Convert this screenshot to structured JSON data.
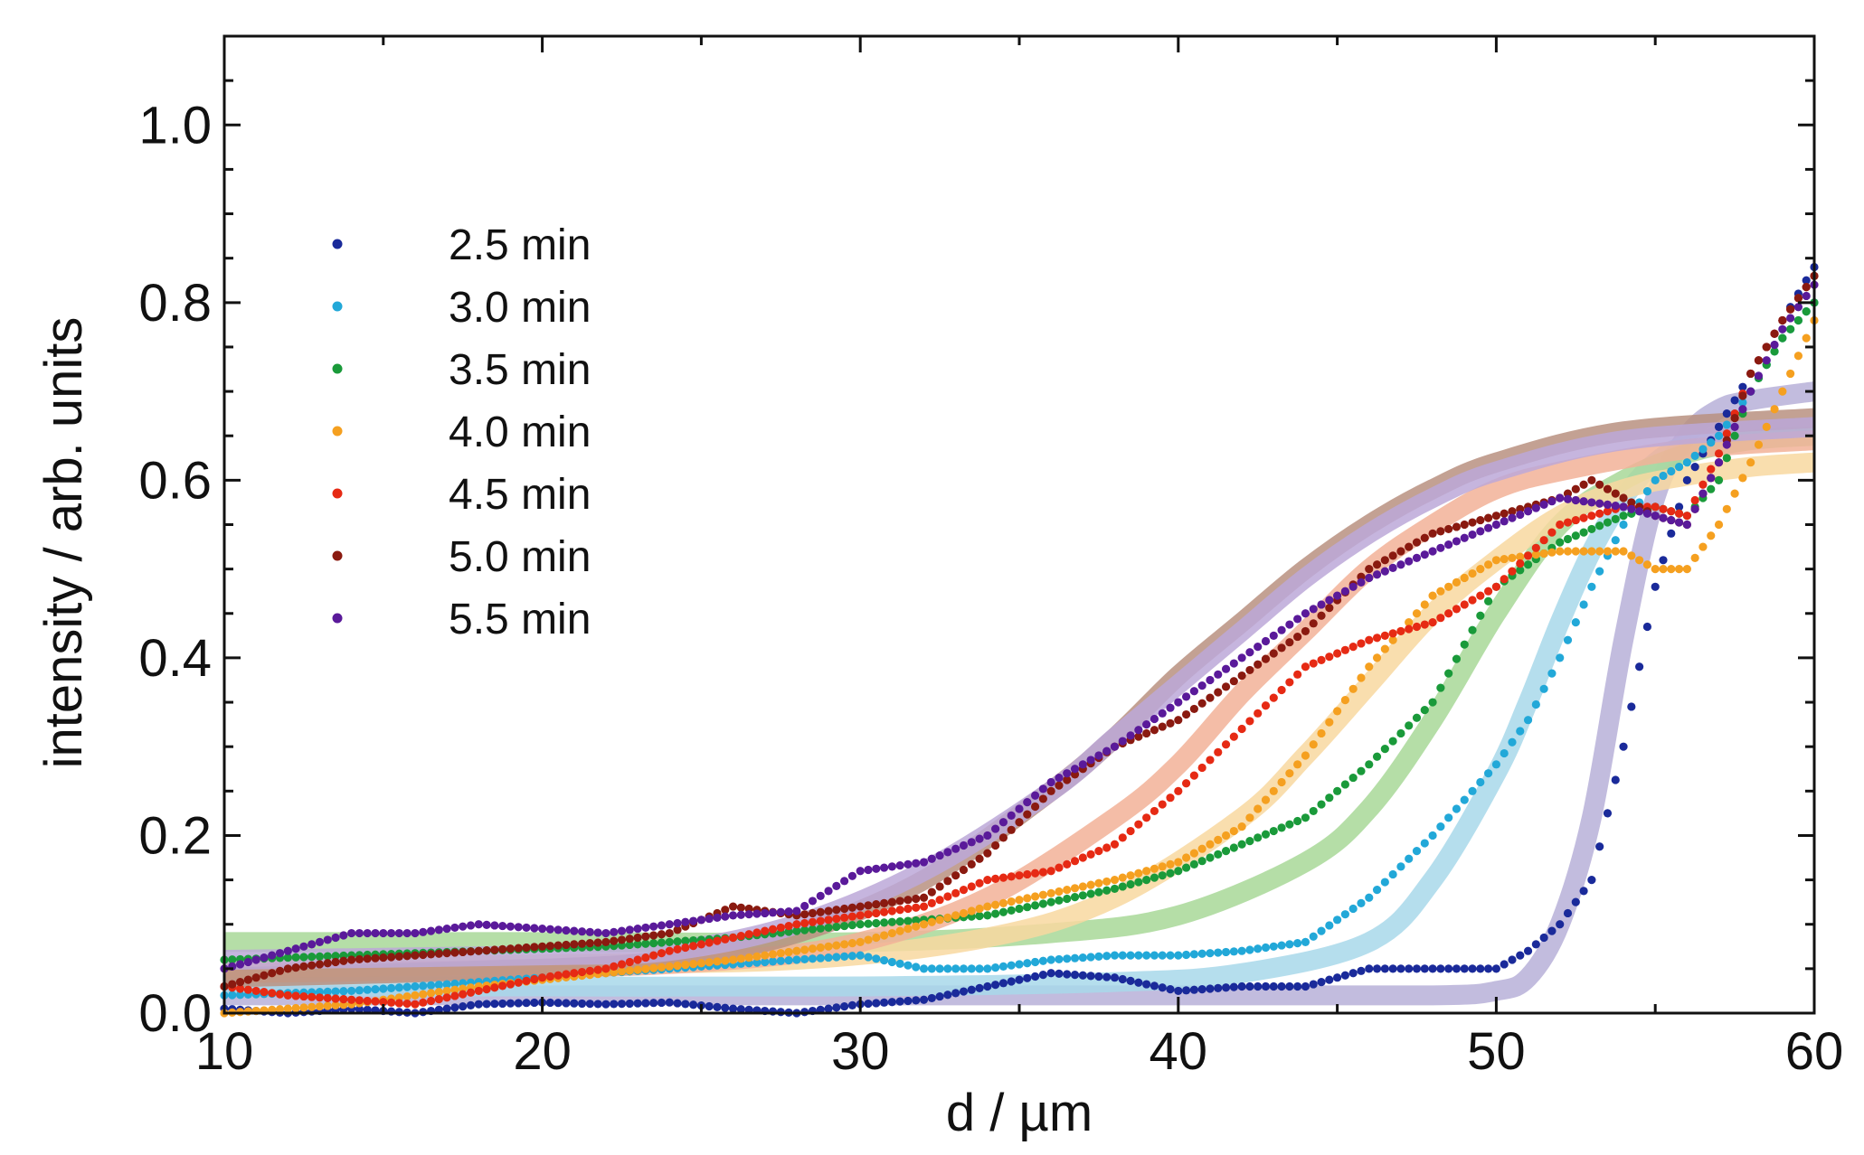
{
  "chart_data": {
    "type": "scatter",
    "title": "",
    "xlabel": "d / µm",
    "ylabel": "intensity / arb. units",
    "xlim": [
      10,
      60
    ],
    "ylim": [
      0,
      1.1
    ],
    "xticks": [
      10,
      20,
      30,
      40,
      50,
      60
    ],
    "xtick_labels": [
      "10",
      "20",
      "30",
      "40",
      "50",
      "60"
    ],
    "yticks": [
      0.0,
      0.2,
      0.4,
      0.6,
      0.8,
      1.0
    ],
    "ytick_labels": [
      "0.0",
      "0.2",
      "0.4",
      "0.6",
      "0.8",
      "1.0"
    ],
    "grid": false,
    "legend_position": "upper-left",
    "series": [
      {
        "name": "2.5 min",
        "color": "#1a2a9a",
        "fit_color": "#b7b0d8",
        "points": [
          [
            10,
            0.005
          ],
          [
            12,
            0.0
          ],
          [
            14,
            0.005
          ],
          [
            16,
            0.0
          ],
          [
            18,
            0.01
          ],
          [
            20,
            0.012
          ],
          [
            22,
            0.01
          ],
          [
            24,
            0.012
          ],
          [
            26,
            0.005
          ],
          [
            28,
            0.0
          ],
          [
            30,
            0.01
          ],
          [
            32,
            0.015
          ],
          [
            34,
            0.03
          ],
          [
            36,
            0.045
          ],
          [
            38,
            0.04
          ],
          [
            40,
            0.025
          ],
          [
            42,
            0.03
          ],
          [
            44,
            0.03
          ],
          [
            46,
            0.05
          ],
          [
            48,
            0.05
          ],
          [
            50,
            0.05
          ],
          [
            51,
            0.07
          ],
          [
            52,
            0.1
          ],
          [
            53,
            0.15
          ],
          [
            54,
            0.3
          ],
          [
            55,
            0.48
          ],
          [
            56,
            0.6
          ],
          [
            57,
            0.66
          ],
          [
            58,
            0.72
          ],
          [
            59,
            0.78
          ],
          [
            60,
            0.84
          ]
        ],
        "fit": [
          [
            10,
            0.02
          ],
          [
            20,
            0.02
          ],
          [
            30,
            0.02
          ],
          [
            40,
            0.02
          ],
          [
            48,
            0.02
          ],
          [
            50,
            0.025
          ],
          [
            51,
            0.04
          ],
          [
            52,
            0.1
          ],
          [
            53,
            0.22
          ],
          [
            54,
            0.42
          ],
          [
            55,
            0.58
          ],
          [
            56,
            0.65
          ],
          [
            57,
            0.68
          ],
          [
            58,
            0.69
          ],
          [
            60,
            0.7
          ]
        ]
      },
      {
        "name": "3.0 min",
        "color": "#22a8d8",
        "fit_color": "#a8d8ea",
        "points": [
          [
            10,
            0.02
          ],
          [
            14,
            0.025
          ],
          [
            18,
            0.035
          ],
          [
            22,
            0.045
          ],
          [
            26,
            0.055
          ],
          [
            30,
            0.065
          ],
          [
            32,
            0.05
          ],
          [
            34,
            0.05
          ],
          [
            36,
            0.06
          ],
          [
            38,
            0.065
          ],
          [
            40,
            0.065
          ],
          [
            42,
            0.07
          ],
          [
            44,
            0.08
          ],
          [
            46,
            0.13
          ],
          [
            48,
            0.2
          ],
          [
            50,
            0.28
          ],
          [
            51,
            0.33
          ],
          [
            52,
            0.4
          ],
          [
            53,
            0.48
          ],
          [
            54,
            0.55
          ],
          [
            55,
            0.6
          ],
          [
            56,
            0.62
          ],
          [
            57,
            0.65
          ],
          [
            58,
            0.7
          ],
          [
            59,
            0.76
          ],
          [
            60,
            0.8
          ]
        ],
        "fit": [
          [
            10,
            0.03
          ],
          [
            20,
            0.03
          ],
          [
            30,
            0.03
          ],
          [
            38,
            0.035
          ],
          [
            42,
            0.045
          ],
          [
            46,
            0.08
          ],
          [
            48,
            0.15
          ],
          [
            50,
            0.27
          ],
          [
            51,
            0.35
          ],
          [
            52,
            0.44
          ],
          [
            53,
            0.52
          ],
          [
            54,
            0.58
          ],
          [
            55,
            0.62
          ],
          [
            56,
            0.64
          ],
          [
            58,
            0.655
          ],
          [
            60,
            0.66
          ]
        ]
      },
      {
        "name": "3.5 min",
        "color": "#1a9a3a",
        "fit_color": "#a8d898",
        "points": [
          [
            10,
            0.06
          ],
          [
            14,
            0.065
          ],
          [
            18,
            0.07
          ],
          [
            22,
            0.075
          ],
          [
            26,
            0.085
          ],
          [
            30,
            0.1
          ],
          [
            34,
            0.11
          ],
          [
            38,
            0.14
          ],
          [
            40,
            0.16
          ],
          [
            42,
            0.19
          ],
          [
            44,
            0.22
          ],
          [
            46,
            0.28
          ],
          [
            48,
            0.35
          ],
          [
            50,
            0.48
          ],
          [
            52,
            0.53
          ],
          [
            54,
            0.56
          ],
          [
            55,
            0.57
          ],
          [
            56,
            0.56
          ],
          [
            57,
            0.6
          ],
          [
            58,
            0.7
          ],
          [
            59,
            0.76
          ],
          [
            60,
            0.8
          ]
        ],
        "fit": [
          [
            10,
            0.08
          ],
          [
            20,
            0.08
          ],
          [
            30,
            0.08
          ],
          [
            36,
            0.09
          ],
          [
            40,
            0.11
          ],
          [
            44,
            0.17
          ],
          [
            46,
            0.23
          ],
          [
            48,
            0.33
          ],
          [
            50,
            0.45
          ],
          [
            52,
            0.55
          ],
          [
            54,
            0.6
          ],
          [
            56,
            0.63
          ],
          [
            58,
            0.645
          ],
          [
            60,
            0.65
          ]
        ]
      },
      {
        "name": "4.0 min",
        "color": "#f5a020",
        "fit_color": "#f8d8a0",
        "points": [
          [
            10,
            0.0
          ],
          [
            14,
            0.01
          ],
          [
            18,
            0.03
          ],
          [
            22,
            0.045
          ],
          [
            26,
            0.06
          ],
          [
            30,
            0.08
          ],
          [
            34,
            0.12
          ],
          [
            38,
            0.15
          ],
          [
            40,
            0.17
          ],
          [
            42,
            0.21
          ],
          [
            44,
            0.29
          ],
          [
            46,
            0.39
          ],
          [
            48,
            0.47
          ],
          [
            50,
            0.51
          ],
          [
            52,
            0.52
          ],
          [
            54,
            0.52
          ],
          [
            55,
            0.5
          ],
          [
            56,
            0.5
          ],
          [
            57,
            0.55
          ],
          [
            58,
            0.62
          ],
          [
            59,
            0.7
          ],
          [
            60,
            0.78
          ]
        ],
        "fit": [
          [
            10,
            0.05
          ],
          [
            20,
            0.055
          ],
          [
            28,
            0.06
          ],
          [
            34,
            0.085
          ],
          [
            38,
            0.13
          ],
          [
            42,
            0.22
          ],
          [
            44,
            0.29
          ],
          [
            46,
            0.37
          ],
          [
            48,
            0.45
          ],
          [
            50,
            0.51
          ],
          [
            52,
            0.56
          ],
          [
            54,
            0.59
          ],
          [
            56,
            0.605
          ],
          [
            58,
            0.615
          ],
          [
            60,
            0.62
          ]
        ]
      },
      {
        "name": "4.5 min",
        "color": "#e62a14",
        "fit_color": "#f2b298",
        "points": [
          [
            10,
            0.03
          ],
          [
            12,
            0.02
          ],
          [
            14,
            0.015
          ],
          [
            16,
            0.01
          ],
          [
            18,
            0.025
          ],
          [
            20,
            0.04
          ],
          [
            22,
            0.05
          ],
          [
            24,
            0.07
          ],
          [
            26,
            0.085
          ],
          [
            28,
            0.1
          ],
          [
            30,
            0.11
          ],
          [
            32,
            0.12
          ],
          [
            34,
            0.15
          ],
          [
            36,
            0.16
          ],
          [
            38,
            0.19
          ],
          [
            40,
            0.25
          ],
          [
            42,
            0.32
          ],
          [
            44,
            0.39
          ],
          [
            46,
            0.42
          ],
          [
            48,
            0.44
          ],
          [
            50,
            0.48
          ],
          [
            52,
            0.55
          ],
          [
            54,
            0.57
          ],
          [
            55,
            0.57
          ],
          [
            56,
            0.56
          ],
          [
            57,
            0.63
          ],
          [
            58,
            0.72
          ],
          [
            59,
            0.78
          ],
          [
            60,
            0.83
          ]
        ],
        "fit": [
          [
            10,
            0.045
          ],
          [
            20,
            0.05
          ],
          [
            26,
            0.06
          ],
          [
            30,
            0.08
          ],
          [
            34,
            0.13
          ],
          [
            38,
            0.22
          ],
          [
            40,
            0.28
          ],
          [
            42,
            0.36
          ],
          [
            44,
            0.43
          ],
          [
            46,
            0.5
          ],
          [
            48,
            0.55
          ],
          [
            50,
            0.59
          ],
          [
            52,
            0.61
          ],
          [
            56,
            0.635
          ],
          [
            60,
            0.645
          ]
        ]
      },
      {
        "name": "5.0 min",
        "color": "#8a1a10",
        "fit_color": "#b89080",
        "points": [
          [
            10,
            0.03
          ],
          [
            12,
            0.05
          ],
          [
            14,
            0.06
          ],
          [
            16,
            0.065
          ],
          [
            18,
            0.07
          ],
          [
            20,
            0.075
          ],
          [
            22,
            0.08
          ],
          [
            24,
            0.09
          ],
          [
            26,
            0.12
          ],
          [
            28,
            0.11
          ],
          [
            30,
            0.12
          ],
          [
            32,
            0.13
          ],
          [
            34,
            0.18
          ],
          [
            36,
            0.25
          ],
          [
            38,
            0.3
          ],
          [
            40,
            0.33
          ],
          [
            42,
            0.38
          ],
          [
            44,
            0.43
          ],
          [
            46,
            0.5
          ],
          [
            48,
            0.54
          ],
          [
            50,
            0.56
          ],
          [
            52,
            0.58
          ],
          [
            53,
            0.6
          ],
          [
            54,
            0.58
          ],
          [
            55,
            0.56
          ],
          [
            56,
            0.55
          ],
          [
            57,
            0.62
          ],
          [
            58,
            0.72
          ],
          [
            59,
            0.78
          ],
          [
            60,
            0.83
          ]
        ],
        "fit": [
          [
            10,
            0.04
          ],
          [
            20,
            0.05
          ],
          [
            24,
            0.06
          ],
          [
            28,
            0.09
          ],
          [
            32,
            0.15
          ],
          [
            36,
            0.25
          ],
          [
            38,
            0.31
          ],
          [
            40,
            0.38
          ],
          [
            42,
            0.44
          ],
          [
            44,
            0.5
          ],
          [
            46,
            0.55
          ],
          [
            48,
            0.59
          ],
          [
            50,
            0.62
          ],
          [
            54,
            0.655
          ],
          [
            60,
            0.67
          ]
        ]
      },
      {
        "name": "5.5 min",
        "color": "#5a1a9a",
        "fit_color": "#bca8d8",
        "points": [
          [
            10,
            0.05
          ],
          [
            12,
            0.07
          ],
          [
            14,
            0.09
          ],
          [
            16,
            0.09
          ],
          [
            18,
            0.1
          ],
          [
            20,
            0.095
          ],
          [
            22,
            0.09
          ],
          [
            24,
            0.1
          ],
          [
            26,
            0.11
          ],
          [
            28,
            0.115
          ],
          [
            30,
            0.16
          ],
          [
            32,
            0.17
          ],
          [
            34,
            0.2
          ],
          [
            36,
            0.26
          ],
          [
            38,
            0.3
          ],
          [
            40,
            0.35
          ],
          [
            42,
            0.4
          ],
          [
            44,
            0.45
          ],
          [
            46,
            0.49
          ],
          [
            48,
            0.52
          ],
          [
            50,
            0.55
          ],
          [
            52,
            0.58
          ],
          [
            54,
            0.57
          ],
          [
            55,
            0.56
          ],
          [
            56,
            0.55
          ],
          [
            57,
            0.62
          ],
          [
            58,
            0.7
          ],
          [
            59,
            0.77
          ],
          [
            60,
            0.82
          ]
        ],
        "fit": [
          [
            10,
            0.06
          ],
          [
            20,
            0.065
          ],
          [
            24,
            0.07
          ],
          [
            28,
            0.1
          ],
          [
            32,
            0.16
          ],
          [
            36,
            0.25
          ],
          [
            38,
            0.31
          ],
          [
            40,
            0.37
          ],
          [
            42,
            0.43
          ],
          [
            44,
            0.49
          ],
          [
            46,
            0.54
          ],
          [
            48,
            0.58
          ],
          [
            50,
            0.61
          ],
          [
            54,
            0.645
          ],
          [
            60,
            0.66
          ]
        ]
      }
    ]
  }
}
